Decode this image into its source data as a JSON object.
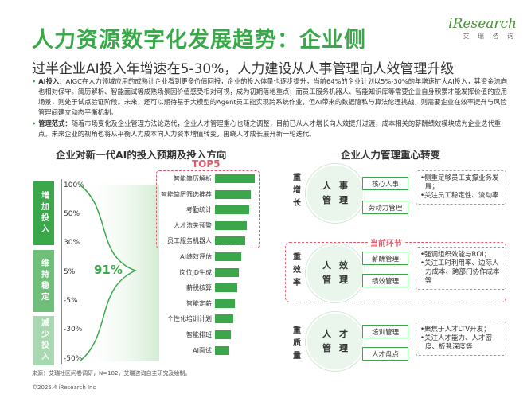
{
  "header": {
    "title": "人力资源数字化发展趋势：企业侧",
    "subtitle": "过半企业AI投入年增速在5-30%，人力建设从人事管理向人效管理升级",
    "logo_text": "iResearch",
    "logo_sub": "艾 瑞 咨 询"
  },
  "bullets": [
    {
      "label": "AI投入：",
      "text": "AIGC在人力领域应用的成熟让企业看到更多价值回报，企业的投入体量也逐步提升，当前64%的企业计划以5%-30%的年增速扩大AI投入，其资金流向也相对保守。简历解析、智能面试等成熟场景因价值感受相对可视，成为初期落地重点；而员工服务机器人、智能知识库等需要企业自身积累才能发挥价值的应用场景，则处于试点验证阶段。未来，还可以期待基于大模型的Agent员工能实现跨系统作业，但AI带来的数据隐私与算法伦理挑战，则需要企业在效率提升与风险管理间建立动态平衡机制。"
    },
    {
      "label": "管理范式：",
      "text": "随着市场变化及企业管理方法论迭代，企业人才管理重心也随之调整，目前已从人才增长向人效提升过渡，成本相关的薪酬绩效模块成为企业迭代重点。未来企业的视角也将从平衡人力成本向人力资本增值转变，围绕人才成长展开新一轮迭代。"
    }
  ],
  "left_panel": {
    "title": "企业对新一代AI的投入预期及投入方向",
    "side_labels": [
      "增加投入",
      "维持稳定",
      "减少投入"
    ],
    "ticks": [
      "100%",
      "50%",
      "30%",
      "5%",
      "-5%",
      "-30%",
      "-50%"
    ],
    "center_value": "91%",
    "top5_label": "TOP5"
  },
  "chart_data": {
    "type": "bar",
    "orientation": "horizontal",
    "categories": [
      "智能简历解析",
      "智能简历筛选推荐",
      "考勤统计",
      "人才流失预警",
      "员工服务机器人",
      "AI绩效评估",
      "岗位JD生成",
      "薪税核算",
      "智能定薪",
      "个性化培训计划",
      "智能排班",
      "AI面试"
    ],
    "values": [
      80,
      72,
      68,
      64,
      60,
      52,
      48,
      44,
      40,
      36,
      32,
      28
    ],
    "title": "企业对新一代AI的投入预期及投入方向",
    "highlight": "TOP5"
  },
  "right_panel": {
    "title": "企业人力管理重心转变",
    "current_label": "当前环节",
    "rows": [
      {
        "side": "重增长",
        "circle": [
          "人事",
          "管理"
        ],
        "tags": [
          "核心人事",
          "劳动力管理"
        ],
        "desc": [
          "•侧重足够员工支撑业务发展；",
          "•关注员工稳定性、流动率"
        ]
      },
      {
        "side": "重效率",
        "circle": [
          "人效",
          "管理"
        ],
        "tags": [
          "薪酬管理",
          "绩效管理"
        ],
        "desc": [
          "•强调组织效能与ROI；",
          "•关注工时利用率、边际人力成本、跨部门协作成本等"
        ]
      },
      {
        "side": "重质量",
        "circle": [
          "人才",
          "管理"
        ],
        "tags": [
          "培训管理",
          "人才盘点"
        ],
        "desc": [
          "•聚焦于人才LTV开发；",
          "•关注人才能力、人才密度、板凳深度等"
        ]
      }
    ]
  },
  "footer": {
    "source": "来源：艾瑞社区问卷调研，N=182，艾瑞咨询自主研究及绘制。",
    "copyright": "©2025.4 iResearch Inc"
  },
  "colors": {
    "accent": "#3aa84a",
    "highlight": "#e05a6e"
  }
}
